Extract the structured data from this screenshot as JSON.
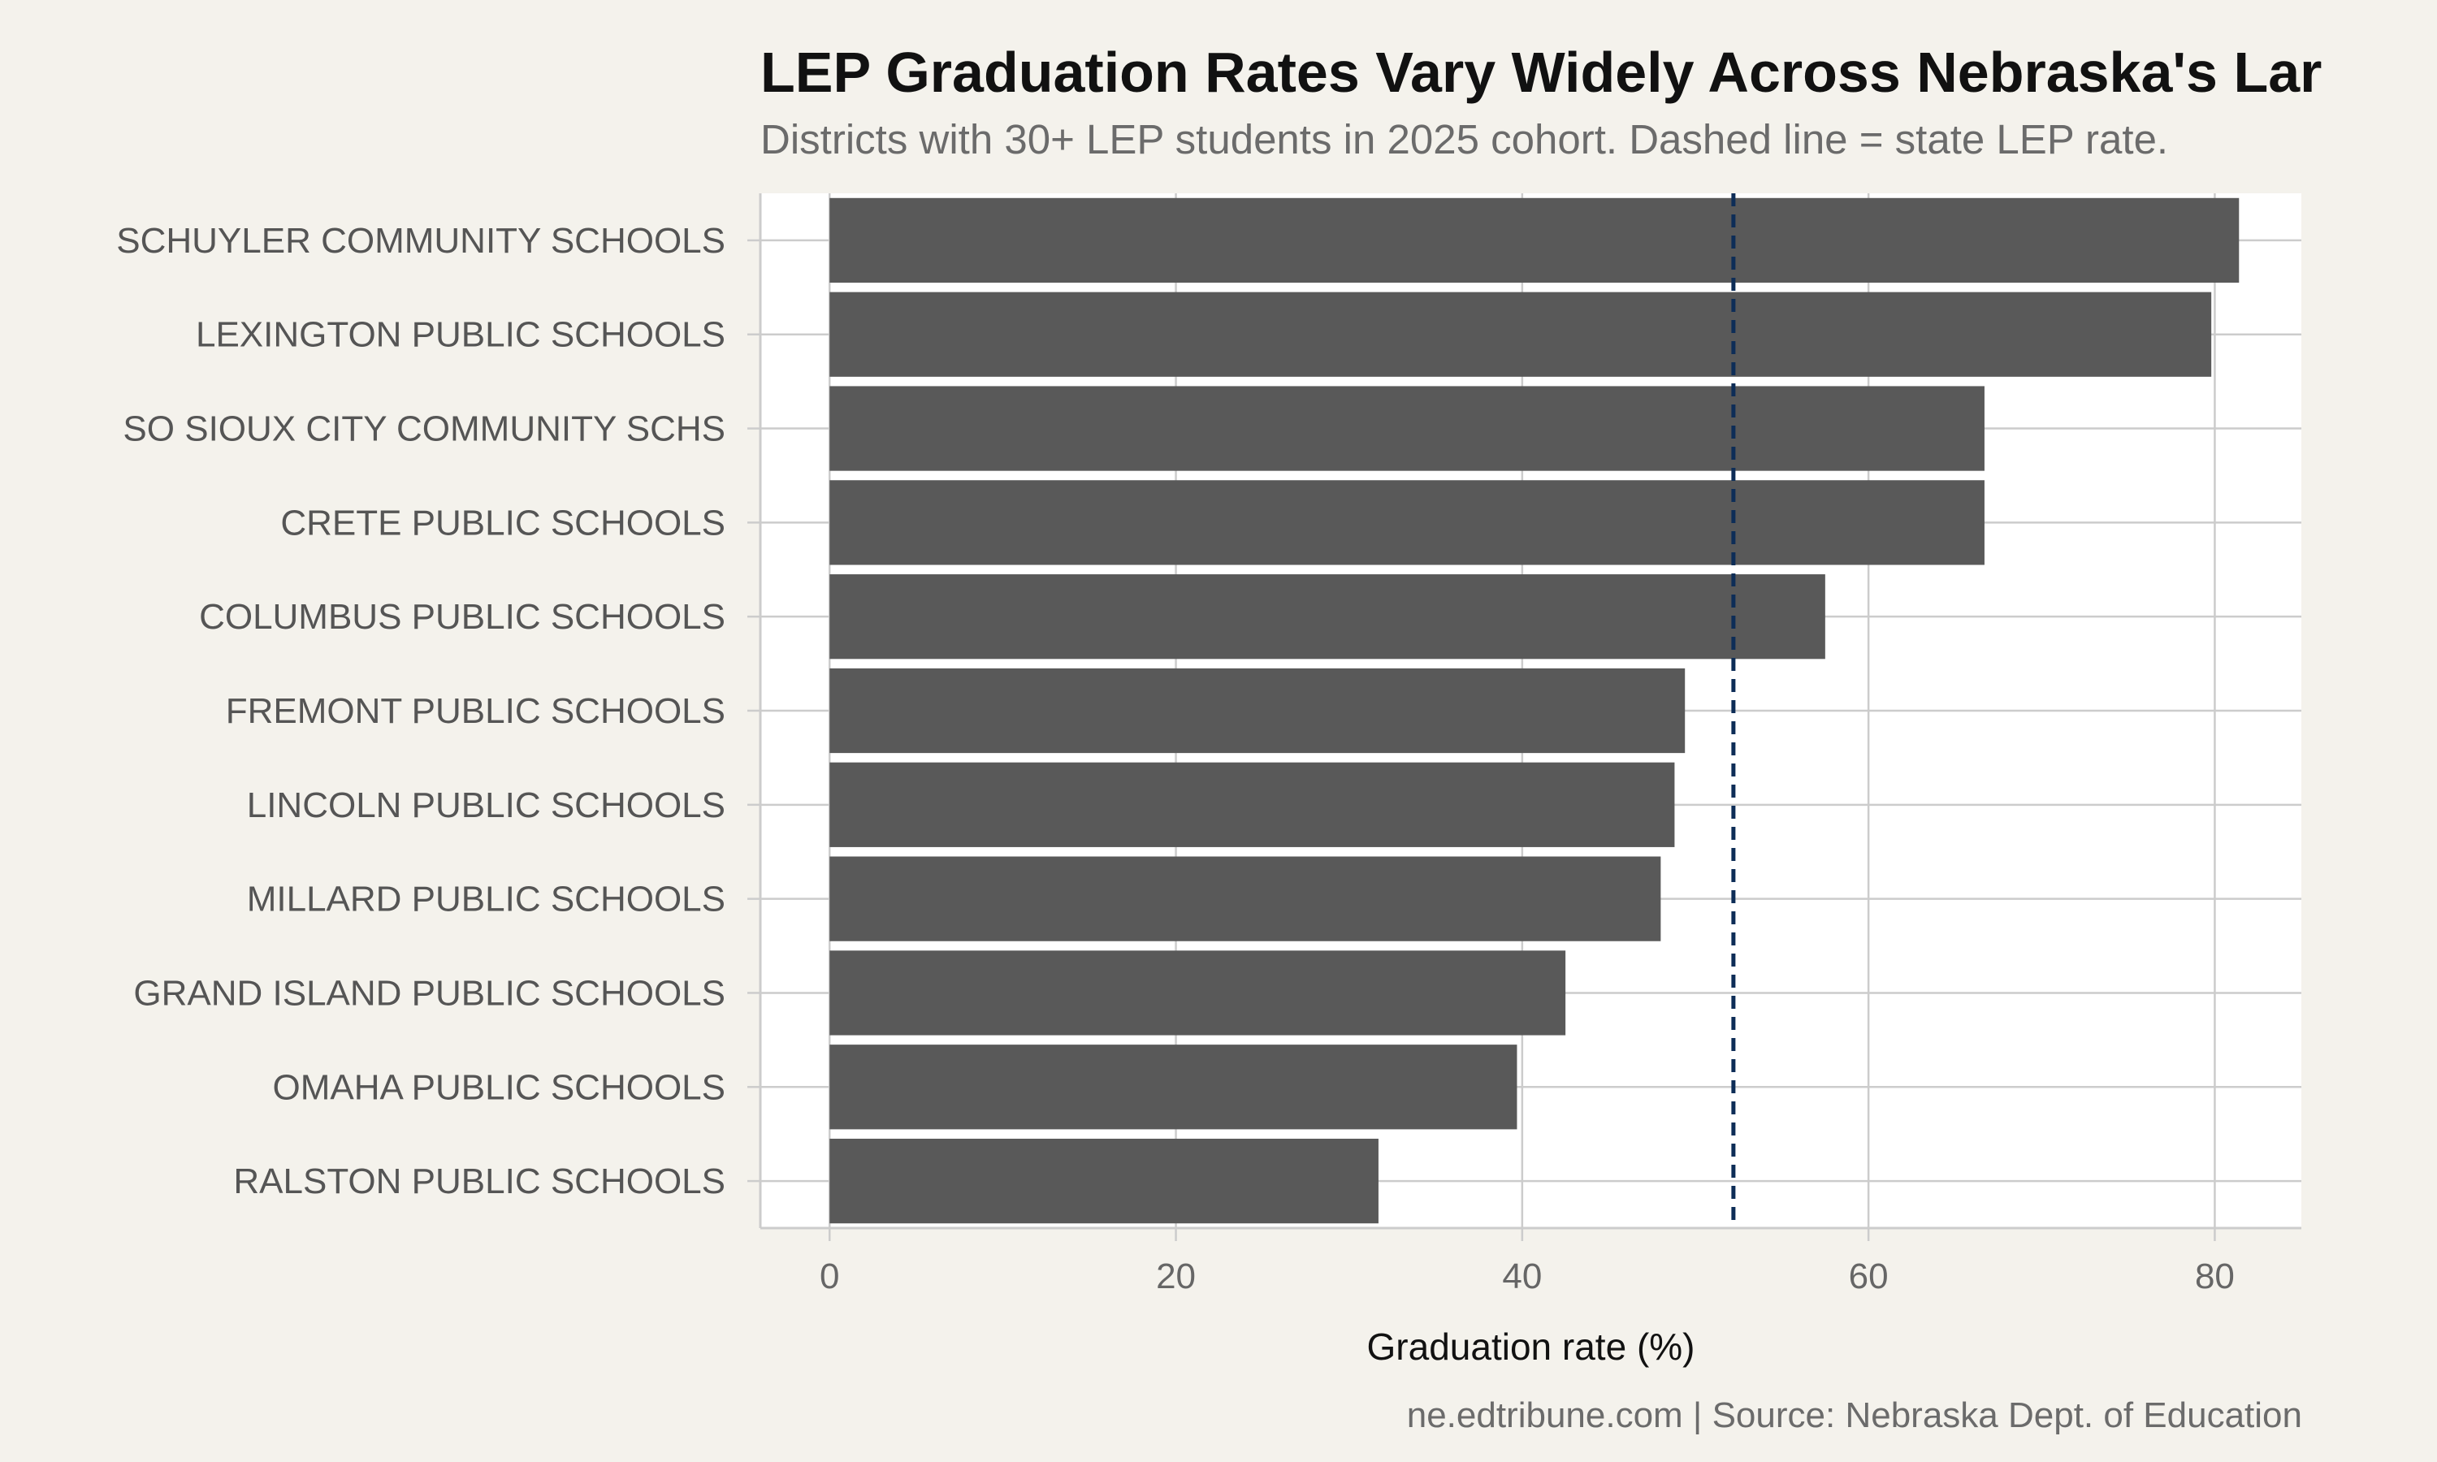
{
  "chart_data": {
    "type": "bar",
    "orientation": "horizontal",
    "title": "LEP Graduation Rates Vary Widely Across Nebraska's Lar",
    "subtitle": "Districts with 30+ LEP students in 2025 cohort. Dashed line = state LEP rate.",
    "caption": "ne.edtribune.com | Source: Nebraska Dept. of Education",
    "xlabel": "Graduation rate (%)",
    "ylabel": "",
    "xlim": [
      -4,
      85
    ],
    "x_ticks": [
      "0",
      "20",
      "40",
      "60",
      "80"
    ],
    "categories": [
      "SCHUYLER COMMUNITY SCHOOLS",
      "LEXINGTON PUBLIC SCHOOLS",
      "SO SIOUX CITY COMMUNITY SCHS",
      "CRETE PUBLIC SCHOOLS",
      "COLUMBUS PUBLIC SCHOOLS",
      "FREMONT PUBLIC SCHOOLS",
      "LINCOLN PUBLIC SCHOOLS",
      "MILLARD PUBLIC SCHOOLS",
      "GRAND ISLAND PUBLIC SCHOOLS",
      "OMAHA PUBLIC SCHOOLS",
      "RALSTON PUBLIC SCHOOLS"
    ],
    "values": [
      81.4,
      79.8,
      66.7,
      66.7,
      57.5,
      49.4,
      48.8,
      48.0,
      42.5,
      39.7,
      31.7
    ],
    "reference_line": {
      "value": 52.2,
      "style": "dashed"
    },
    "grid": true,
    "colors": {
      "bar": "#595959",
      "reference_line": "#0d2d57",
      "panel": "#ffffff",
      "background": "#f4f2ec",
      "grid": "#cccccc"
    }
  }
}
